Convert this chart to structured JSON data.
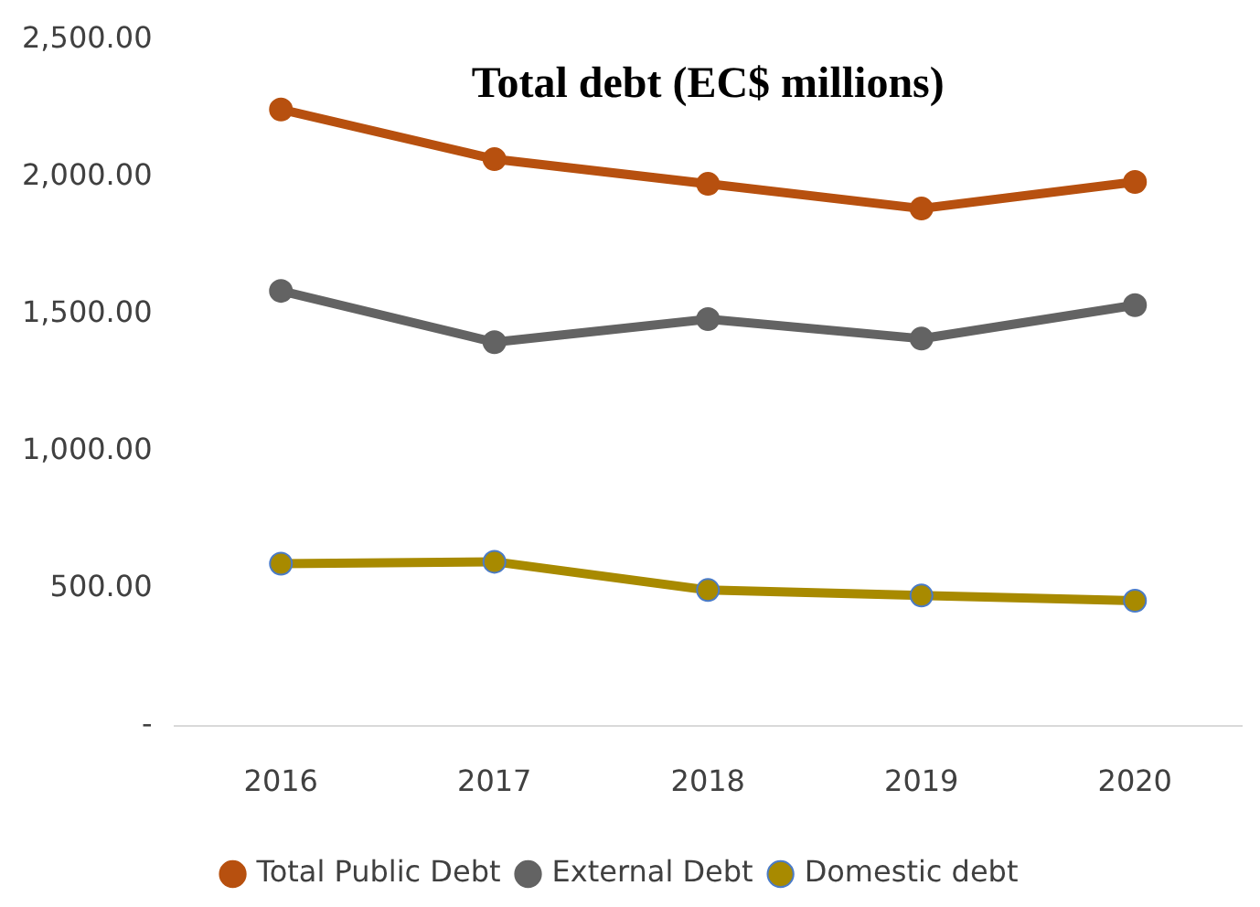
{
  "chart_data": {
    "type": "line",
    "title": "Total debt (EC$ millions)",
    "categories": [
      "2016",
      "2017",
      "2018",
      "2019",
      "2020"
    ],
    "series": [
      {
        "name": "Total Public Debt",
        "color": "#b7500f",
        "values": [
          2245,
          2064,
          1974,
          1884,
          1981
        ]
      },
      {
        "name": "External Debt",
        "color": "#636363",
        "values": [
          1584,
          1397,
          1481,
          1410,
          1532
        ]
      },
      {
        "name": "Domestic debt",
        "color": "#a88a00",
        "values": [
          590,
          597,
          494,
          474,
          455
        ]
      }
    ],
    "ylim": [
      0,
      2500
    ],
    "yticks": [
      {
        "value": 0,
        "label": "-"
      },
      {
        "value": 500,
        "label": "500.00"
      },
      {
        "value": 1000,
        "label": "1,000.00"
      },
      {
        "value": 1500,
        "label": "1,500.00"
      },
      {
        "value": 2000,
        "label": "2,000.00"
      },
      {
        "value": 2500,
        "label": "2,500.00"
      }
    ],
    "grid": false,
    "legend": "bottom",
    "marker": "circle",
    "line_style": "solid"
  }
}
